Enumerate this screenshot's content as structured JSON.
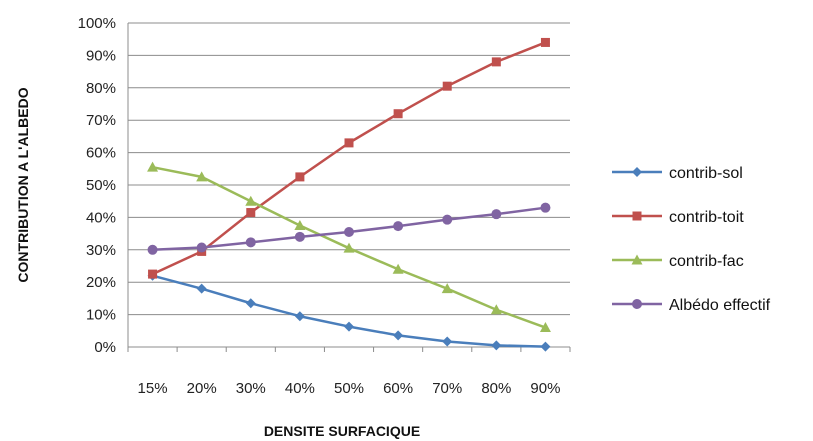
{
  "chart_data": {
    "type": "line",
    "title": "",
    "xlabel": "DENSITE SURFACIQUE",
    "ylabel": "CONTRIBUTION A L'ALBEDO",
    "categories": [
      "15%",
      "20%",
      "30%",
      "40%",
      "50%",
      "60%",
      "70%",
      "80%",
      "90%"
    ],
    "y_ticks": [
      "0%",
      "10%",
      "20%",
      "30%",
      "40%",
      "50%",
      "60%",
      "70%",
      "80%",
      "90%",
      "100%"
    ],
    "ylim": [
      0,
      100
    ],
    "grid": "horizontal",
    "legend_position": "right",
    "series": [
      {
        "name": "contrib-sol",
        "color": "#4a7ebb",
        "marker": "diamond",
        "values": [
          22,
          18,
          13.5,
          9.5,
          6.3,
          3.6,
          1.7,
          0.5,
          0.1
        ]
      },
      {
        "name": "contrib-toit",
        "color": "#c0504d",
        "marker": "square",
        "values": [
          22.5,
          29.5,
          41.5,
          52.5,
          63,
          72,
          80.5,
          88,
          94
        ]
      },
      {
        "name": "contrib-fac",
        "color": "#9bbb59",
        "marker": "triangle",
        "values": [
          55.5,
          52.5,
          45,
          37.5,
          30.5,
          24,
          18,
          11.5,
          6
        ]
      },
      {
        "name": "Albédo effectif",
        "color": "#8064a2",
        "marker": "circle",
        "values": [
          30,
          30.7,
          32.3,
          34,
          35.5,
          37.3,
          39.3,
          41,
          43
        ]
      }
    ]
  }
}
